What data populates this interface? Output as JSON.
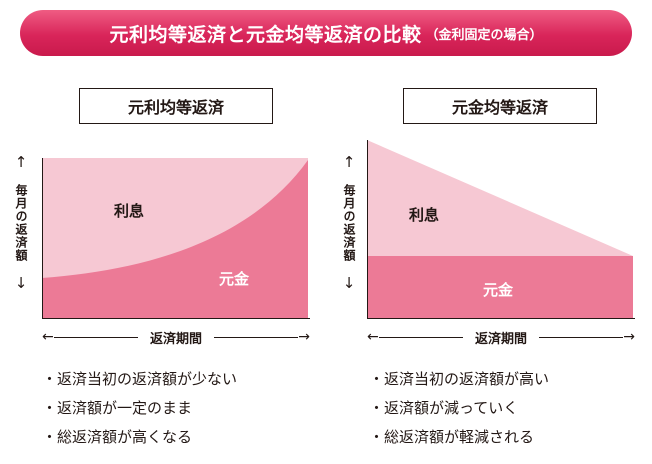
{
  "title": {
    "main": "元利均等返済と元金均等返済の比較",
    "sub": "（金利固定の場合）"
  },
  "left": {
    "label": "元利均等返済",
    "y_label": "毎月の返済額",
    "x_label": "返済期間",
    "interest_label": "利息",
    "principal_label": "元金",
    "bullets": [
      "・返済当初の返済額が少ない",
      "・返済額が一定のまま",
      "・総返済額が高くなる"
    ]
  },
  "right": {
    "label": "元金均等返済",
    "y_label": "毎月の返済額",
    "x_label": "返済期間",
    "interest_label": "利息",
    "principal_label": "元金",
    "bullets": [
      "・返済当初の返済額が高い",
      "・返済額が減っていく",
      "・総返済額が軽減される"
    ]
  },
  "colors": {
    "banner": "#d9255a",
    "interest": "#f6c8d3",
    "principal": "#ec7a96"
  },
  "icons": [
    "arrow-up-icon",
    "arrow-down-icon",
    "arrow-left-icon",
    "arrow-right-icon"
  ]
}
